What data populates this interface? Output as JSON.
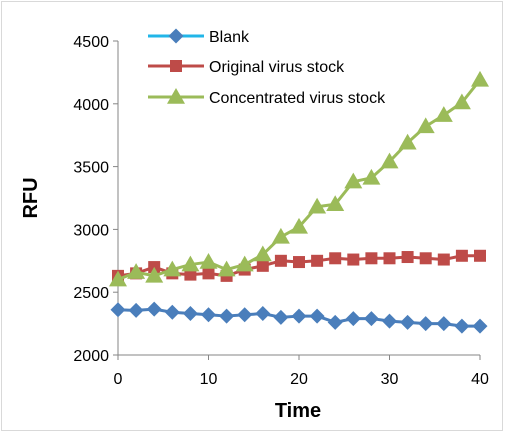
{
  "chart_data": {
    "type": "line",
    "title": "",
    "xlabel": "Time",
    "ylabel": "RFU",
    "xlim": [
      0,
      40
    ],
    "ylim": [
      2000,
      4500
    ],
    "x_ticks": [
      0,
      10,
      20,
      30,
      40
    ],
    "y_ticks": [
      2000,
      2500,
      3000,
      3500,
      4000,
      4500
    ],
    "grid": false,
    "legend_position": "top-left",
    "x": [
      0,
      2,
      4,
      6,
      8,
      10,
      12,
      14,
      16,
      18,
      20,
      22,
      24,
      26,
      28,
      30,
      32,
      34,
      36,
      38,
      40
    ],
    "series": [
      {
        "name": "Blank",
        "marker": "diamond",
        "color": "#4a7ebb",
        "legend_line_color": "#21b6e8",
        "values": [
          2360,
          2355,
          2365,
          2340,
          2330,
          2320,
          2310,
          2320,
          2330,
          2300,
          2310,
          2310,
          2260,
          2290,
          2290,
          2270,
          2260,
          2250,
          2250,
          2230,
          2230
        ]
      },
      {
        "name": "Original virus stock",
        "marker": "square",
        "color": "#be4b48",
        "values": [
          2630,
          2650,
          2700,
          2650,
          2640,
          2650,
          2630,
          2680,
          2710,
          2750,
          2740,
          2750,
          2770,
          2760,
          2770,
          2770,
          2780,
          2770,
          2760,
          2790,
          2790
        ]
      },
      {
        "name": "Concentrated virus stock",
        "marker": "triangle",
        "color": "#9bbb59",
        "values": [
          2600,
          2660,
          2630,
          2680,
          2720,
          2740,
          2680,
          2720,
          2800,
          2940,
          3020,
          3180,
          3200,
          3380,
          3410,
          3540,
          3690,
          3820,
          3910,
          4010,
          4190
        ]
      }
    ]
  }
}
